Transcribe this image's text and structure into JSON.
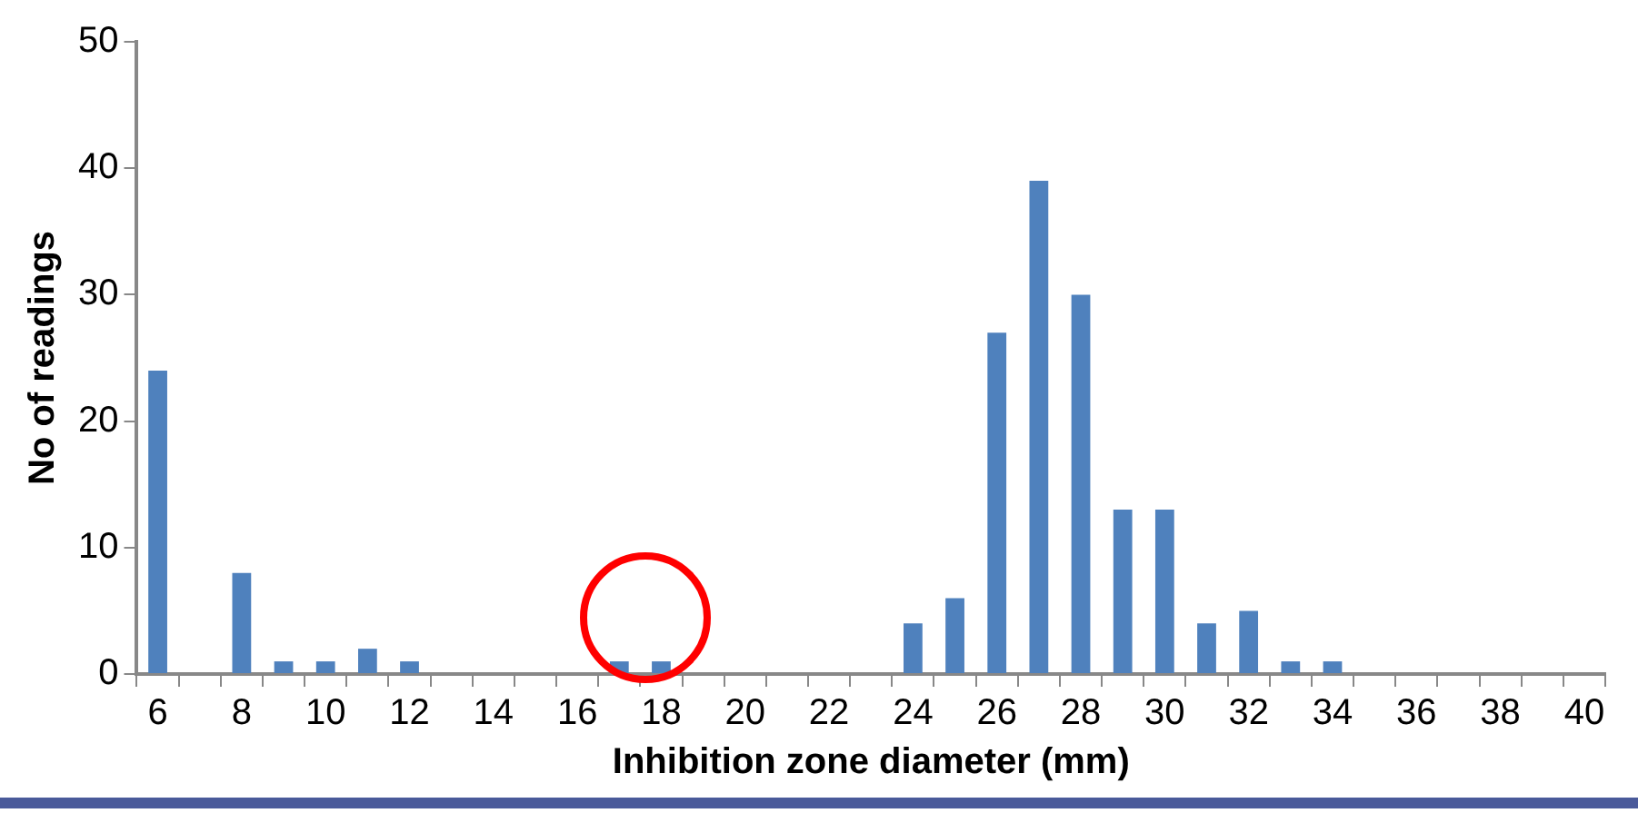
{
  "chart_data": {
    "type": "bar",
    "xlabel": "Inhibition zone diameter (mm)",
    "ylabel": "No of readings",
    "categories": [
      "6",
      null,
      "8",
      null,
      "10",
      null,
      "12",
      null,
      "14",
      null,
      "16",
      null,
      "18",
      null,
      "20",
      null,
      "22",
      null,
      "24",
      null,
      "26",
      null,
      "28",
      null,
      "30",
      null,
      "32",
      null,
      "34",
      null,
      "36",
      null,
      "38",
      null,
      "40"
    ],
    "values": [
      24,
      0,
      8,
      1,
      1,
      2,
      1,
      0,
      0,
      0,
      0,
      1,
      1,
      0,
      0,
      0,
      0,
      0,
      4,
      6,
      27,
      39,
      30,
      13,
      13,
      4,
      5,
      1,
      1,
      0,
      0,
      0,
      0,
      0,
      0
    ],
    "color": "#4f81bd",
    "ylim": [
      0,
      50
    ],
    "yticks": [
      0,
      10,
      20,
      30,
      40,
      50
    ],
    "grid": false,
    "legend": false
  }
}
